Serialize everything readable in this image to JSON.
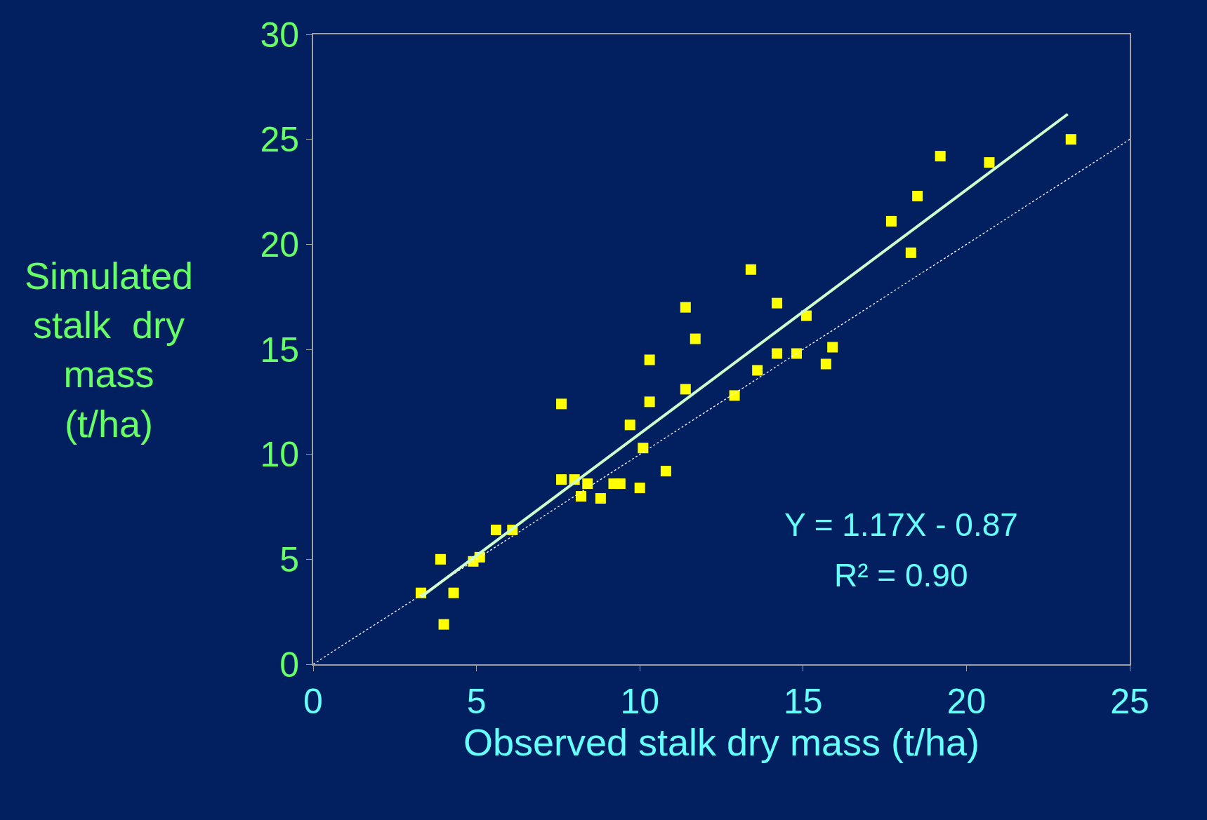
{
  "chart_data": {
    "type": "scatter",
    "xlabel": "Observed stalk dry mass (t/ha)",
    "ylabel": "Simulated\nstalk  dry\nmass\n(t/ha)",
    "xlim": [
      0,
      25
    ],
    "ylim": [
      0,
      30
    ],
    "xticks": [
      0,
      5,
      10,
      15,
      20,
      25
    ],
    "yticks": [
      0,
      5,
      10,
      15,
      20,
      25,
      30
    ],
    "grid": false,
    "legend": false,
    "marker": "square",
    "series": [
      {
        "color": "#ffff00",
        "x": [
          3.3,
          3.9,
          4.0,
          4.3,
          4.9,
          5.1,
          5.6,
          6.1,
          7.6,
          7.6,
          8.0,
          8.2,
          8.4,
          8.8,
          9.2,
          9.4,
          9.7,
          10.0,
          10.1,
          10.3,
          10.3,
          10.8,
          11.4,
          11.4,
          11.7,
          12.9,
          13.4,
          13.6,
          14.2,
          14.2,
          14.8,
          15.1,
          15.7,
          15.9,
          17.7,
          18.3,
          18.5,
          19.2,
          20.7,
          23.2
        ],
        "values": [
          3.4,
          5.0,
          1.9,
          3.4,
          4.9,
          5.1,
          6.4,
          6.4,
          12.4,
          8.8,
          8.8,
          8.0,
          8.6,
          7.9,
          8.6,
          8.6,
          11.4,
          8.4,
          10.3,
          14.5,
          12.5,
          9.2,
          17.0,
          13.1,
          15.5,
          12.8,
          18.8,
          14.0,
          17.2,
          14.8,
          14.8,
          16.6,
          14.3,
          15.1,
          21.1,
          19.6,
          22.3,
          24.2,
          23.9,
          25.0
        ]
      },
      {
        "type": "line",
        "color": "#ccffcc",
        "line_style": "solid",
        "marker": "none",
        "x": [
          3.3,
          23.1
        ],
        "values": [
          3.2,
          26.2
        ]
      },
      {
        "type": "line",
        "color": "#ffffff",
        "line_style": "dotted",
        "marker": "none",
        "x": [
          0,
          25
        ],
        "values": [
          0,
          25
        ]
      }
    ],
    "annotations": [
      "Y = 1.17X - 0.87",
      "R² = 0.90"
    ]
  }
}
